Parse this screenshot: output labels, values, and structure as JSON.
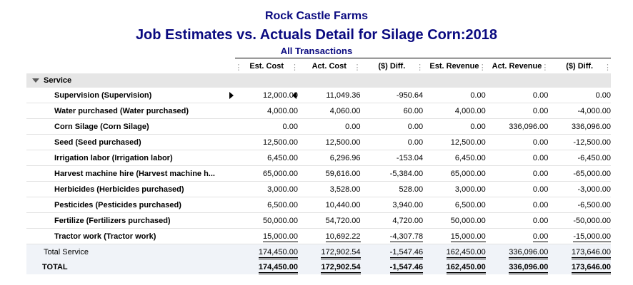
{
  "report": {
    "company": "Rock Castle Farms",
    "title": "Job Estimates vs. Actuals Detail for Silage Corn:2018",
    "subtitle": "All Transactions"
  },
  "columns": [
    "Est. Cost",
    "Act. Cost",
    "($) Diff.",
    "Est. Revenue",
    "Act. Revenue",
    "($) Diff."
  ],
  "section": {
    "label": "Service"
  },
  "rows": [
    {
      "label": "Supervision (Supervision)",
      "values": [
        "12,000.00",
        "11,049.36",
        "-950.64",
        "0.00",
        "0.00",
        "0.00"
      ]
    },
    {
      "label": "Water purchased (Water purchased)",
      "values": [
        "4,000.00",
        "4,060.00",
        "60.00",
        "4,000.00",
        "0.00",
        "-4,000.00"
      ]
    },
    {
      "label": "Corn Silage (Corn Silage)",
      "values": [
        "0.00",
        "0.00",
        "0.00",
        "0.00",
        "336,096.00",
        "336,096.00"
      ]
    },
    {
      "label": "Seed (Seed purchased)",
      "values": [
        "12,500.00",
        "12,500.00",
        "0.00",
        "12,500.00",
        "0.00",
        "-12,500.00"
      ]
    },
    {
      "label": "Irrigation labor (Irrigation labor)",
      "values": [
        "6,450.00",
        "6,296.96",
        "-153.04",
        "6,450.00",
        "0.00",
        "-6,450.00"
      ]
    },
    {
      "label": "Harvest machine hire (Harvest machine h...",
      "values": [
        "65,000.00",
        "59,616.00",
        "-5,384.00",
        "65,000.00",
        "0.00",
        "-65,000.00"
      ]
    },
    {
      "label": "Herbicides (Herbicides purchased)",
      "values": [
        "3,000.00",
        "3,528.00",
        "528.00",
        "3,000.00",
        "0.00",
        "-3,000.00"
      ]
    },
    {
      "label": "Pesticides (Pesticides purchased)",
      "values": [
        "6,500.00",
        "10,440.00",
        "3,940.00",
        "6,500.00",
        "0.00",
        "-6,500.00"
      ]
    },
    {
      "label": "Fertilize (Fertilizers purchased)",
      "values": [
        "50,000.00",
        "54,720.00",
        "4,720.00",
        "50,000.00",
        "0.00",
        "-50,000.00"
      ]
    },
    {
      "label": "Tractor work (Tractor work)",
      "values": [
        "15,000.00",
        "10,692.22",
        "-4,307.78",
        "15,000.00",
        "0.00",
        "-15,000.00"
      ]
    }
  ],
  "total_service": {
    "label": "Total Service",
    "values": [
      "174,450.00",
      "172,902.54",
      "-1,547.46",
      "162,450.00",
      "336,096.00",
      "173,646.00"
    ]
  },
  "grand_total": {
    "label": "TOTAL",
    "values": [
      "174,450.00",
      "172,902.54",
      "-1,547.46",
      "162,450.00",
      "336,096.00",
      "173,646.00"
    ]
  }
}
